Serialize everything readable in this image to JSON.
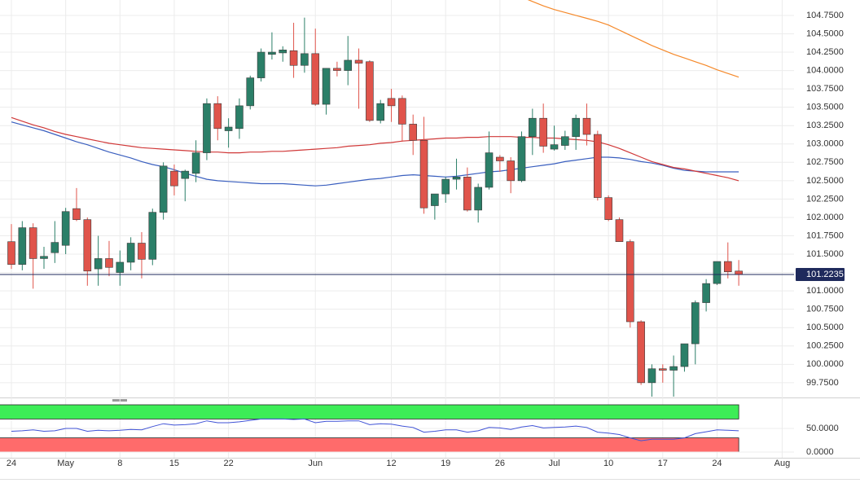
{
  "chart_data": [
    {
      "type": "candlestick",
      "categories": [
        "24",
        null,
        null,
        null,
        null,
        "May",
        null,
        null,
        null,
        null,
        "8",
        null,
        null,
        null,
        null,
        "15",
        null,
        null,
        null,
        null,
        "22",
        null,
        null,
        null,
        null,
        null,
        null,
        null,
        "Jun",
        null,
        null,
        null,
        null,
        null,
        null,
        "12",
        null,
        null,
        null,
        null,
        "19",
        null,
        null,
        null,
        null,
        "26",
        null,
        null,
        null,
        null,
        "Jul",
        null,
        null,
        null,
        null,
        "10",
        null,
        null,
        null,
        null,
        "17",
        null,
        null,
        null,
        null,
        "24",
        null,
        null,
        null,
        null,
        null,
        "Aug",
        null
      ],
      "open": [
        101.67,
        101.36,
        101.86,
        101.44,
        101.52,
        101.62,
        102.12,
        101.97,
        101.3,
        101.44,
        101.25,
        101.39,
        101.65,
        101.43,
        102.07,
        102.63,
        102.53,
        102.6,
        102.88,
        103.55,
        103.18,
        103.21,
        103.52,
        103.9,
        104.22,
        104.24,
        104.27,
        104.07,
        104.23,
        103.54,
        104.03,
        104.0,
        104.14,
        104.12,
        103.32,
        103.62,
        103.62,
        103.27,
        103.05,
        102.16,
        102.32,
        102.52,
        102.55,
        102.1,
        102.41,
        102.82,
        102.77,
        102.5,
        103.1,
        103.35,
        102.93,
        102.98,
        103.1,
        103.35,
        103.13,
        102.27,
        101.97,
        101.67,
        100.58,
        99.75,
        99.94,
        99.92,
        99.97,
        100.28,
        100.84,
        101.1,
        101.4,
        101.27,
        null,
        null,
        null,
        null,
        null
      ],
      "high": [
        101.91,
        101.95,
        101.92,
        101.6,
        101.95,
        102.13,
        102.4,
        102.0,
        101.75,
        101.68,
        101.55,
        101.73,
        101.8,
        102.12,
        102.75,
        102.72,
        102.65,
        103.05,
        103.62,
        103.65,
        103.35,
        103.62,
        103.93,
        104.3,
        104.52,
        104.33,
        104.65,
        104.72,
        104.57,
        104.03,
        104.12,
        104.47,
        104.3,
        104.14,
        103.6,
        103.75,
        103.66,
        103.4,
        103.37,
        102.32,
        102.55,
        102.8,
        102.68,
        102.46,
        103.17,
        102.85,
        102.82,
        103.17,
        103.48,
        103.55,
        103.25,
        103.18,
        103.4,
        103.55,
        103.18,
        102.3,
        102.0,
        101.7,
        100.6,
        100.0,
        100.0,
        100.12,
        100.28,
        100.87,
        101.16,
        101.4,
        101.66,
        101.42,
        null,
        null,
        null,
        null,
        null
      ],
      "low": [
        101.3,
        101.28,
        101.03,
        101.3,
        101.38,
        101.5,
        101.95,
        101.07,
        101.07,
        101.2,
        101.07,
        101.28,
        101.17,
        101.35,
        101.97,
        102.3,
        102.22,
        102.48,
        102.78,
        103.05,
        102.95,
        103.07,
        103.47,
        103.85,
        104.15,
        104.12,
        103.9,
        103.97,
        103.52,
        103.4,
        103.92,
        103.8,
        103.48,
        103.3,
        103.28,
        103.3,
        103.03,
        102.85,
        102.05,
        101.97,
        102.2,
        102.38,
        102.08,
        101.93,
        102.38,
        102.62,
        102.33,
        102.48,
        102.85,
        102.88,
        102.91,
        102.92,
        102.92,
        102.98,
        102.23,
        101.95,
        101.67,
        100.5,
        99.72,
        99.55,
        99.75,
        99.55,
        99.9,
        100.0,
        100.72,
        101.08,
        101.17,
        101.07,
        null,
        null,
        null,
        null,
        null
      ],
      "close": [
        101.36,
        101.86,
        101.44,
        101.47,
        101.66,
        102.08,
        101.97,
        101.27,
        101.44,
        101.32,
        101.39,
        101.65,
        101.43,
        102.07,
        102.7,
        102.43,
        102.63,
        102.88,
        103.55,
        103.21,
        103.23,
        103.52,
        103.9,
        104.25,
        104.25,
        104.28,
        104.07,
        104.23,
        103.54,
        104.03,
        104.0,
        104.14,
        104.1,
        103.32,
        103.55,
        103.52,
        103.27,
        103.05,
        102.13,
        102.32,
        102.52,
        102.55,
        102.1,
        102.41,
        102.88,
        102.77,
        102.5,
        103.1,
        103.35,
        102.97,
        102.99,
        103.1,
        103.35,
        103.13,
        102.27,
        101.97,
        101.67,
        100.58,
        99.75,
        99.94,
        99.92,
        99.97,
        100.28,
        100.84,
        101.1,
        101.4,
        101.26,
        101.2235,
        null,
        null,
        null,
        null,
        null
      ],
      "up_color": "#2b7f68",
      "down_color": "#e0544b",
      "lines": [
        {
          "color": "#3a5fbf",
          "values": [
            103.3,
            103.26,
            103.22,
            103.18,
            103.13,
            103.08,
            103.03,
            102.99,
            102.94,
            102.89,
            102.85,
            102.81,
            102.76,
            102.72,
            102.69,
            102.65,
            102.6,
            102.56,
            102.52,
            102.5,
            102.49,
            102.48,
            102.47,
            102.46,
            102.46,
            102.46,
            102.45,
            102.44,
            102.43,
            102.44,
            102.46,
            102.48,
            102.5,
            102.52,
            102.53,
            102.55,
            102.57,
            102.58,
            102.57,
            102.56,
            102.55,
            102.56,
            102.58,
            102.6,
            102.62,
            102.63,
            102.65,
            102.67,
            102.69,
            102.71,
            102.73,
            102.76,
            102.78,
            102.8,
            102.82,
            102.82,
            102.81,
            102.79,
            102.76,
            102.74,
            102.71,
            102.67,
            102.64,
            102.63,
            102.62,
            102.62,
            102.62,
            102.62,
            null,
            null,
            null,
            null,
            null
          ]
        },
        {
          "color": "#d03838",
          "values": [
            103.36,
            103.31,
            103.26,
            103.22,
            103.17,
            103.13,
            103.1,
            103.07,
            103.04,
            103.01,
            102.99,
            102.97,
            102.95,
            102.94,
            102.93,
            102.92,
            102.91,
            102.9,
            102.89,
            102.89,
            102.88,
            102.88,
            102.89,
            102.89,
            102.9,
            102.9,
            102.91,
            102.92,
            102.93,
            102.94,
            102.95,
            102.97,
            102.98,
            102.99,
            103.01,
            103.02,
            103.04,
            103.05,
            103.06,
            103.07,
            103.08,
            103.08,
            103.09,
            103.09,
            103.1,
            103.1,
            103.1,
            103.09,
            103.09,
            103.08,
            103.08,
            103.07,
            103.06,
            103.05,
            103.03,
            102.99,
            102.94,
            102.88,
            102.82,
            102.76,
            102.72,
            102.68,
            102.66,
            102.63,
            102.6,
            102.57,
            102.54,
            102.5,
            null,
            null,
            null,
            null,
            null
          ]
        },
        {
          "color": "#f5892a",
          "values": [
            null,
            null,
            null,
            null,
            null,
            null,
            null,
            null,
            null,
            null,
            null,
            null,
            null,
            null,
            null,
            null,
            null,
            null,
            null,
            null,
            null,
            null,
            null,
            null,
            null,
            null,
            null,
            null,
            null,
            null,
            null,
            null,
            null,
            null,
            null,
            null,
            null,
            null,
            null,
            null,
            null,
            null,
            null,
            null,
            null,
            null,
            null,
            105.0,
            104.94,
            104.88,
            104.83,
            104.79,
            104.75,
            104.71,
            104.67,
            104.62,
            104.55,
            104.48,
            104.41,
            104.34,
            104.28,
            104.22,
            104.17,
            104.12,
            104.07,
            104.01,
            103.96,
            103.91,
            null,
            null,
            null,
            null,
            null
          ]
        }
      ],
      "last_price": 101.2235,
      "last_price_color": "#1f2a5c",
      "ylim": [
        99.56,
        104.96
      ],
      "yticks": [
        {
          "value": 99.75,
          "label": "99.7500"
        },
        {
          "value": 100.0,
          "label": "100.0000"
        },
        {
          "value": 100.25,
          "label": "100.2500"
        },
        {
          "value": 100.5,
          "label": "100.5000"
        },
        {
          "value": 100.75,
          "label": "100.7500"
        },
        {
          "value": 101.0,
          "label": "101.0000"
        },
        {
          "value": 101.25,
          "label": "101.2500"
        },
        {
          "value": 101.5,
          "label": "101.5000"
        },
        {
          "value": 101.75,
          "label": "101.7500"
        },
        {
          "value": 102.0,
          "label": "102.0000"
        },
        {
          "value": 102.25,
          "label": "102.2500"
        },
        {
          "value": 102.5,
          "label": "102.5000"
        },
        {
          "value": 102.75,
          "label": "102.7500"
        },
        {
          "value": 103.0,
          "label": "103.0000"
        },
        {
          "value": 103.25,
          "label": "103.2500"
        },
        {
          "value": 103.5,
          "label": "103.5000"
        },
        {
          "value": 103.75,
          "label": "103.7500"
        },
        {
          "value": 104.0,
          "label": "104.0000"
        },
        {
          "value": 104.25,
          "label": "104.2500"
        },
        {
          "value": 104.5,
          "label": "104.5000"
        },
        {
          "value": 104.75,
          "label": "104.7500"
        }
      ],
      "grid": true
    },
    {
      "type": "line",
      "values": [
        44,
        45,
        47,
        44,
        45,
        50,
        50,
        44,
        46,
        45,
        46,
        48,
        47,
        54,
        60,
        57,
        58,
        60,
        66,
        62,
        62,
        64,
        67,
        70,
        70,
        70,
        69,
        70,
        62,
        65,
        65,
        66,
        66,
        58,
        60,
        59,
        55,
        52,
        42,
        44,
        47,
        47,
        42,
        45,
        52,
        51,
        48,
        53,
        56,
        51,
        52,
        53,
        55,
        52,
        42,
        40,
        37,
        30,
        24,
        27,
        27,
        27,
        30,
        39,
        43,
        47,
        46,
        45,
        null,
        null,
        null,
        null,
        null
      ],
      "color": "#3f52d6",
      "bands": [
        {
          "from": 70,
          "to": 100,
          "color": "#3ded57"
        },
        {
          "from": 0,
          "to": 30,
          "color": "#ff6b6b"
        }
      ],
      "ylim": [
        0,
        100
      ],
      "yticks": [
        {
          "value": 50,
          "label": "50.0000"
        },
        {
          "value": 0,
          "label": "0.0000"
        }
      ]
    }
  ]
}
